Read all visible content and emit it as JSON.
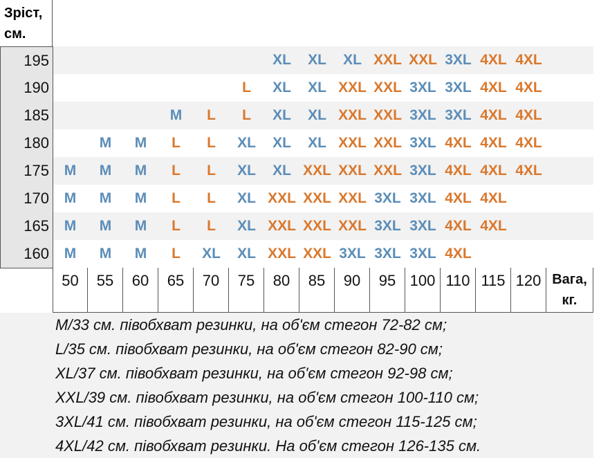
{
  "header": {
    "height_label": "Зріст, см.",
    "weight_label": "Вага, кг."
  },
  "size_colors": {
    "M": "#5b8db8",
    "L": "#d9782d",
    "XL": "#5b8db8",
    "XXL": "#d9782d",
    "3XL": "#5b8db8",
    "4XL": "#d9782d"
  },
  "weights": [
    50,
    55,
    60,
    65,
    70,
    75,
    80,
    85,
    90,
    95,
    100,
    110,
    115,
    120
  ],
  "rows": [
    {
      "height": 195,
      "sizes": [
        null,
        null,
        null,
        null,
        null,
        null,
        "XL",
        "XL",
        "XL",
        "XXL",
        "XXL",
        "3XL",
        "4XL",
        "4XL"
      ]
    },
    {
      "height": 190,
      "sizes": [
        null,
        null,
        null,
        null,
        null,
        "L",
        "XL",
        "XL",
        "XXL",
        "XXL",
        "3XL",
        "3XL",
        "4XL",
        "4XL"
      ]
    },
    {
      "height": 185,
      "sizes": [
        null,
        null,
        null,
        "M",
        "L",
        "L",
        "XL",
        "XL",
        "XXL",
        "XXL",
        "3XL",
        "3XL",
        "4XL",
        "4XL"
      ]
    },
    {
      "height": 180,
      "sizes": [
        null,
        "M",
        "M",
        "L",
        "L",
        "XL",
        "XL",
        "XL",
        "XXL",
        "XXL",
        "3XL",
        "4XL",
        "4XL",
        "4XL"
      ]
    },
    {
      "height": 175,
      "sizes": [
        "M",
        "M",
        "M",
        "L",
        "L",
        "XL",
        "XL",
        "XXL",
        "XXL",
        "XXL",
        "3XL",
        "4XL",
        "4XL",
        "4XL"
      ]
    },
    {
      "height": 170,
      "sizes": [
        "M",
        "M",
        "M",
        "L",
        "L",
        "XL",
        "XXL",
        "XXL",
        "XXL",
        "3XL",
        "3XL",
        "4XL",
        "4XL",
        null
      ]
    },
    {
      "height": 165,
      "sizes": [
        "M",
        "M",
        "M",
        "L",
        "L",
        "XL",
        "XXL",
        "XXL",
        "XXL",
        "3XL",
        "3XL",
        "4XL",
        "4XL",
        null
      ]
    },
    {
      "height": 160,
      "sizes": [
        "M",
        "M",
        "M",
        "L",
        "XL",
        "XL",
        "XXL",
        "XXL",
        "3XL",
        "3XL",
        "3XL",
        "4XL",
        null,
        null
      ]
    }
  ],
  "notes": [
    "M/33 см. півобхват резинки, на об'єм стегон 72-82 см;",
    "L/35 см. півобхват резинки, на об'єм стегон 82-90 см;",
    "XL/37 см. півобхват резинки, на об'єм стегон 92-98 см;",
    "XXL/39 см. півобхват резинки, на об'єм стегон 100-110 см;",
    "3XL/41 см. півобхват резинки, на об'єм стегон 115-125 см;",
    "4XL/42 см. півобхват резинки. На об'єм стегон 126-135 см."
  ]
}
